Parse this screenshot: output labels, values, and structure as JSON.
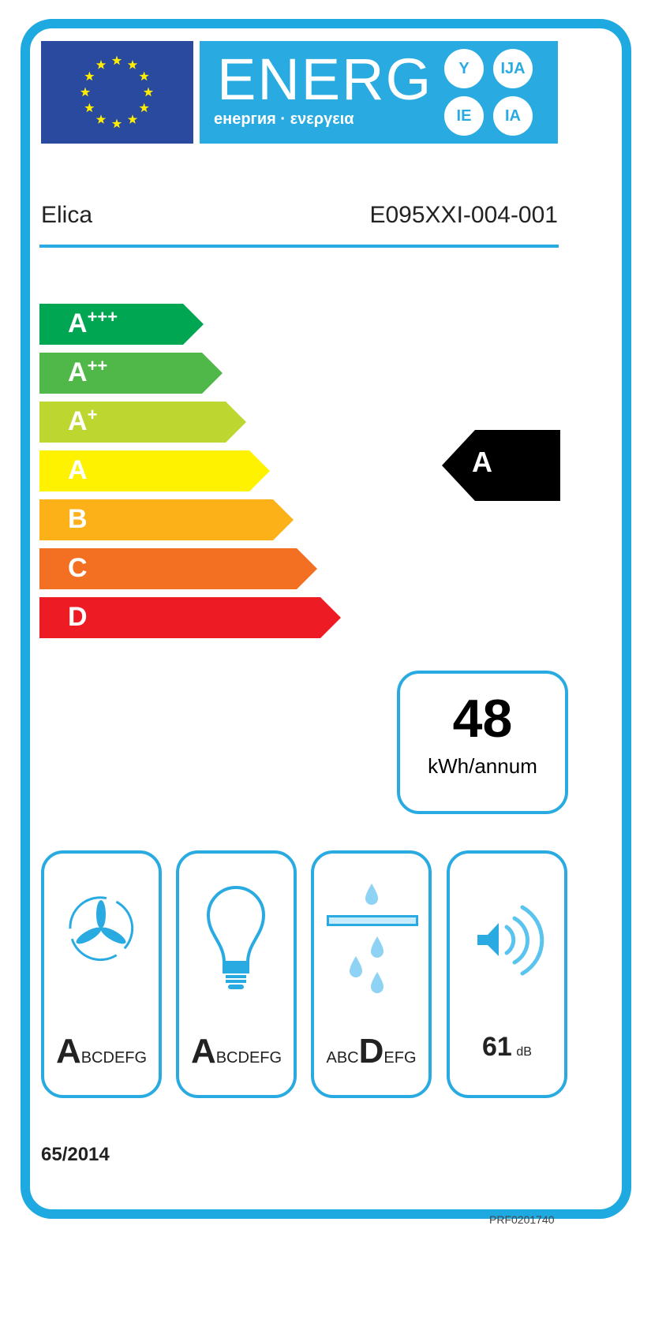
{
  "header": {
    "energy_word": "ENERG",
    "energy_sub": "енергия · ενεργεια",
    "suffixes": [
      "Y",
      "IJA",
      "IE",
      "IA"
    ]
  },
  "supplier": "Elica",
  "model": "E095XXI-004-001",
  "scale": {
    "classes": [
      {
        "letter": "A",
        "plus": "+++",
        "color": "#00a651"
      },
      {
        "letter": "A",
        "plus": "++",
        "color": "#50b848"
      },
      {
        "letter": "A",
        "plus": "+",
        "color": "#bed630"
      },
      {
        "letter": "A",
        "plus": "",
        "color": "#fff200"
      },
      {
        "letter": "B",
        "plus": "",
        "color": "#fbb117"
      },
      {
        "letter": "C",
        "plus": "",
        "color": "#f36f21"
      },
      {
        "letter": "D",
        "plus": "",
        "color": "#ed1c24"
      }
    ],
    "rating": "A"
  },
  "consumption": {
    "value": "48",
    "unit": "kWh/annum"
  },
  "pictograms": [
    {
      "icon": "fan-icon",
      "pre": "",
      "big": "A",
      "post": "BCDEFG"
    },
    {
      "icon": "light-bulb-icon",
      "pre": "",
      "big": "A",
      "post": "BCDEFG"
    },
    {
      "icon": "grease-filter-icon",
      "pre": "ABC",
      "big": "D",
      "post": "EFG"
    },
    {
      "icon": "noise-icon",
      "value": "61",
      "unit": "dB"
    }
  ],
  "regulation": "65/2014",
  "product_code": "PRF0201740",
  "colors": {
    "frame": "#1fa9e1",
    "eu_blue": "#2a4a9f",
    "star": "#ffed00"
  }
}
